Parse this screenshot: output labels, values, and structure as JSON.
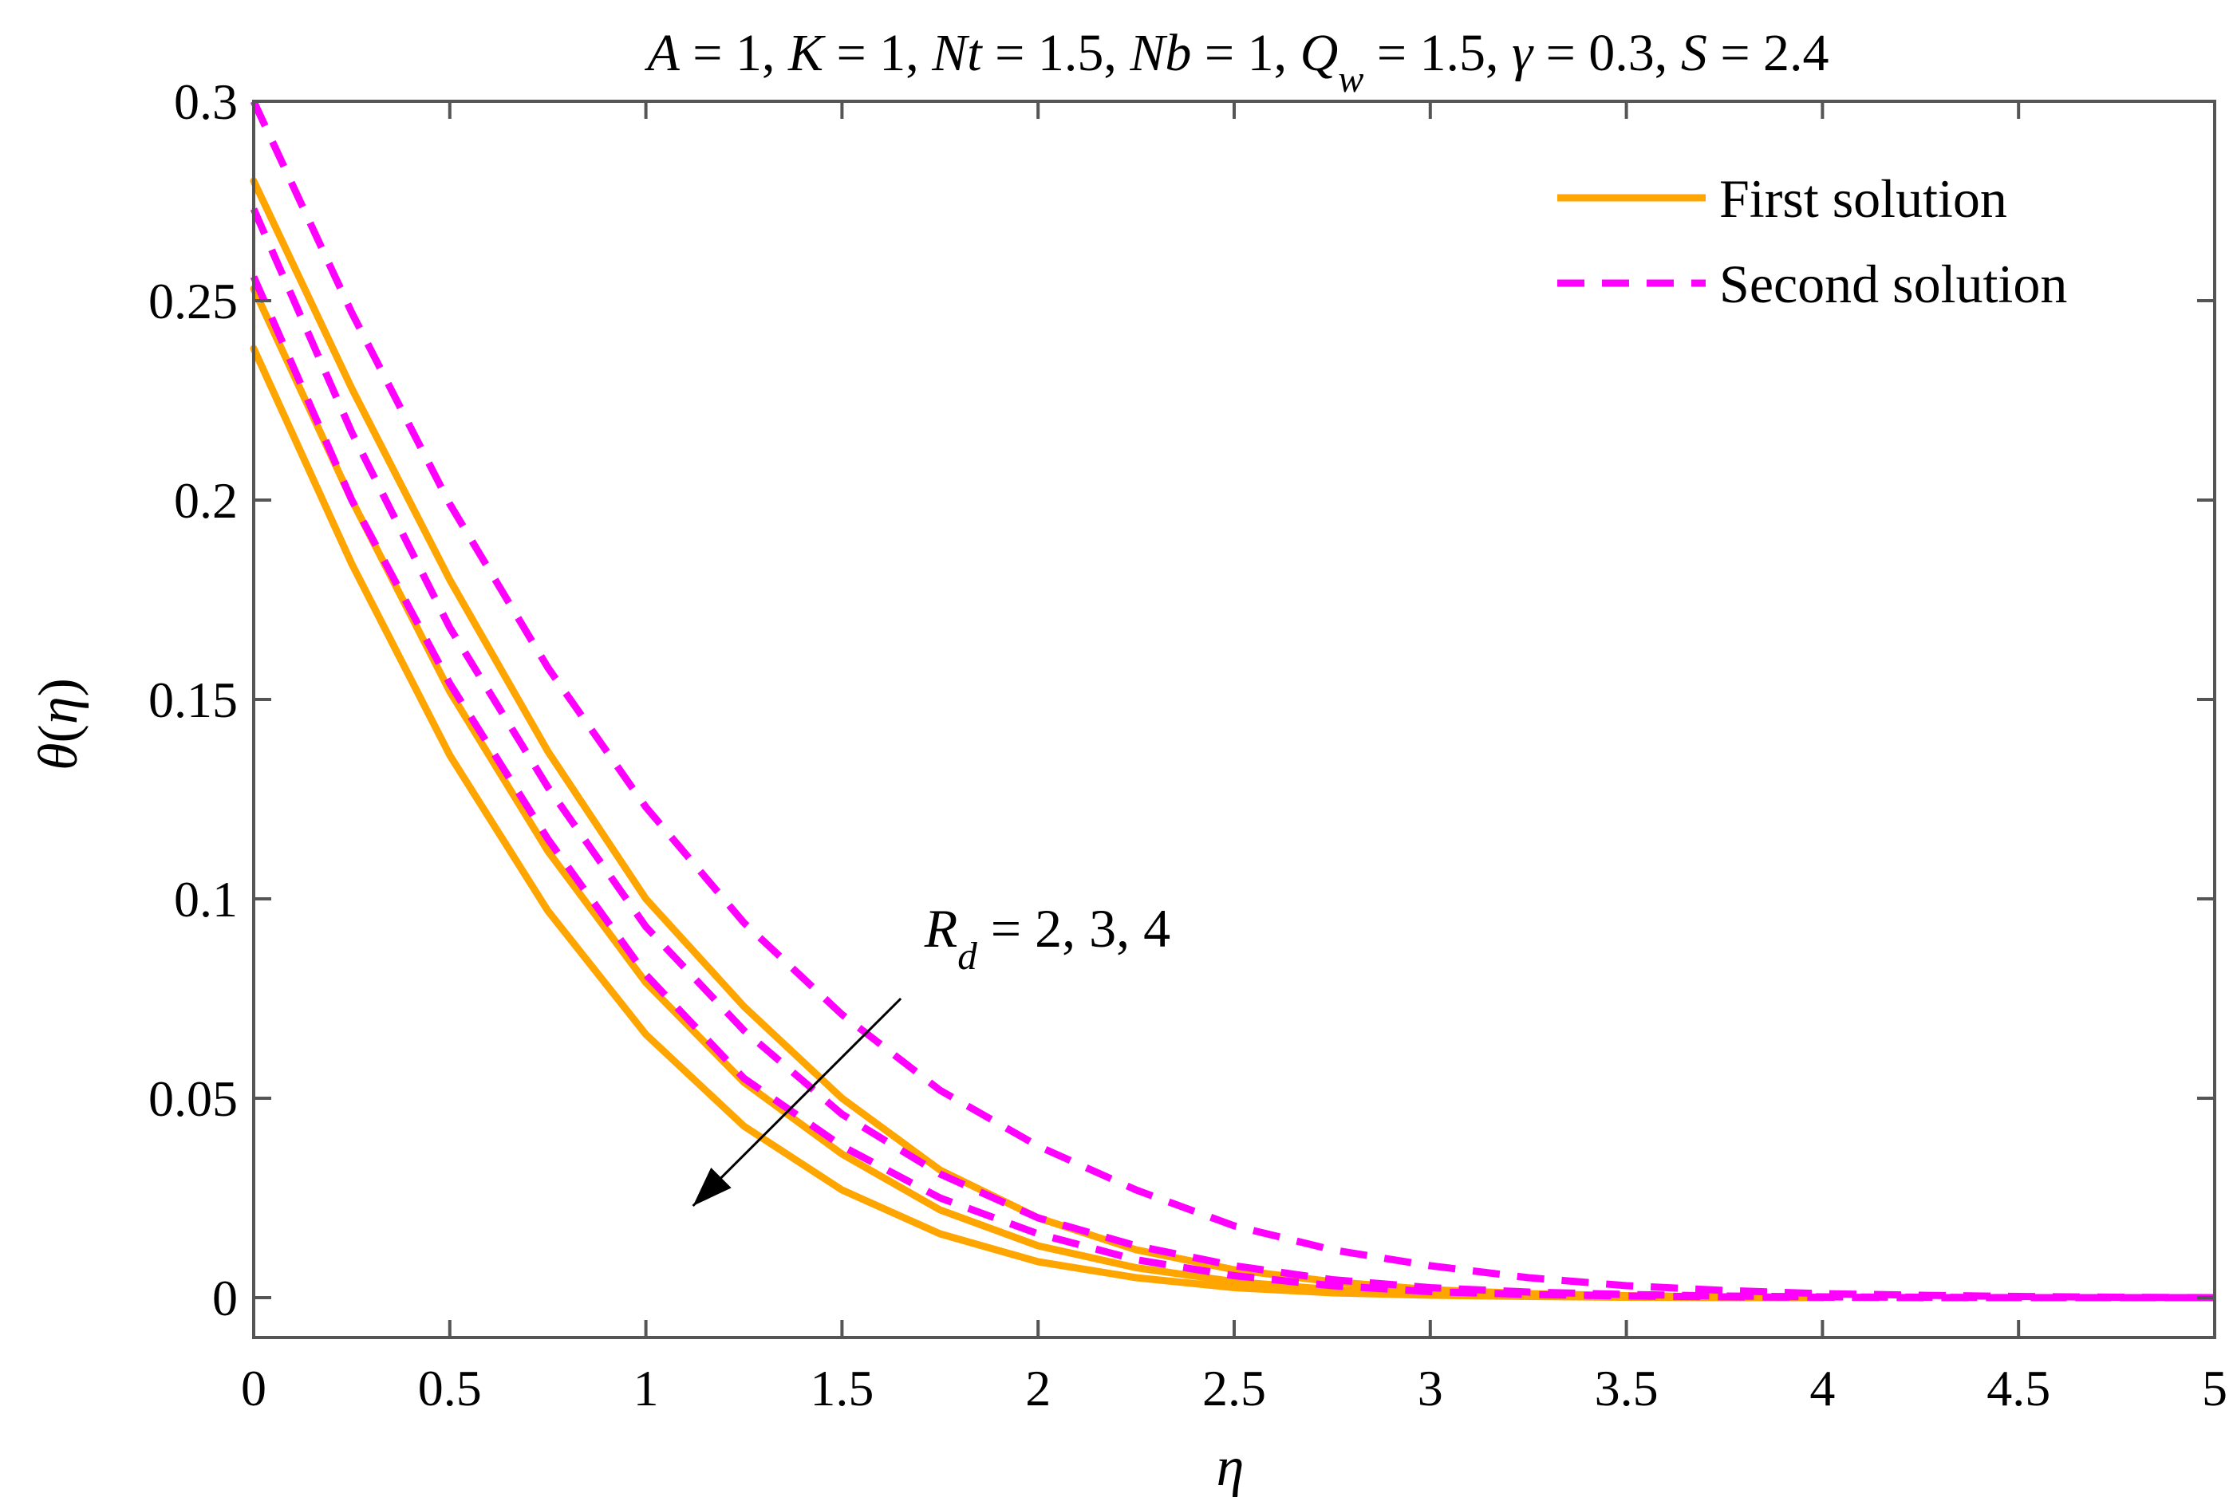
{
  "chart_data": {
    "type": "line",
    "title_parts": [
      {
        "t": "A",
        "it": true
      },
      {
        "t": " = 1, ",
        "it": false
      },
      {
        "t": "K",
        "it": true
      },
      {
        "t": " = 1, ",
        "it": false
      },
      {
        "t": "Nt",
        "it": true
      },
      {
        "t": " = 1.5, ",
        "it": false
      },
      {
        "t": "Nb",
        "it": true
      },
      {
        "t": " = 1, ",
        "it": false
      },
      {
        "t": "Q",
        "it": true
      },
      {
        "t": "w",
        "it": true,
        "sub": true
      },
      {
        "t": " = 1.5, ",
        "it": false
      },
      {
        "t": "γ",
        "it": true
      },
      {
        "t": " = 0.3, ",
        "it": false
      },
      {
        "t": "S",
        "it": true
      },
      {
        "t": " = 2.4",
        "it": false
      }
    ],
    "xlabel": "η",
    "ylabel_parts": [
      {
        "t": "θ",
        "it": true
      },
      {
        "t": "(",
        "it": false
      },
      {
        "t": "η",
        "it": true
      },
      {
        "t": ")",
        "it": false
      }
    ],
    "xlim": [
      0,
      5
    ],
    "ylim": [
      -0.01,
      0.3
    ],
    "xticks": [
      0,
      0.5,
      1,
      1.5,
      2,
      2.5,
      3,
      3.5,
      4,
      4.5,
      5
    ],
    "xtick_labels": [
      "0",
      "0.5",
      "1",
      "1.5",
      "2",
      "2.5",
      "3",
      "3.5",
      "4",
      "4.5",
      "5"
    ],
    "yticks": [
      0,
      0.05,
      0.1,
      0.15,
      0.2,
      0.25,
      0.3
    ],
    "ytick_labels": [
      "0",
      "0.05",
      "0.1",
      "0.15",
      "0.2",
      "0.25",
      "0.3"
    ],
    "grid": false,
    "legend_position": "top-right",
    "legend": [
      {
        "label": "First solution",
        "color": "#FFA500",
        "dash": "solid"
      },
      {
        "label": "Second solution",
        "color": "#FF00FF",
        "dash": "dashed"
      }
    ],
    "annotation": {
      "parts": [
        {
          "t": "R",
          "it": true
        },
        {
          "t": "d",
          "it": true,
          "sub": true
        },
        {
          "t": " = 2, 3, 4",
          "it": false
        }
      ],
      "arrow_from": [
        1.65,
        0.075
      ],
      "arrow_to": [
        1.12,
        0.023
      ],
      "label_at": [
        1.7,
        0.092
      ]
    },
    "series": [
      {
        "group": "First solution",
        "color": "#FFA500",
        "dash": "solid",
        "x": [
          0,
          0.25,
          0.5,
          0.75,
          1,
          1.25,
          1.5,
          1.75,
          2,
          2.25,
          2.5,
          2.75,
          3,
          3.25,
          3.5,
          3.75,
          4
        ],
        "y": [
          0.28,
          0.228,
          0.18,
          0.137,
          0.1,
          0.073,
          0.05,
          0.032,
          0.02,
          0.012,
          0.007,
          0.004,
          0.002,
          0.001,
          0.0005,
          0.0002,
          0
        ]
      },
      {
        "group": "First solution",
        "color": "#FFA500",
        "dash": "solid",
        "x": [
          0,
          0.25,
          0.5,
          0.75,
          1,
          1.25,
          1.5,
          1.75,
          2,
          2.25,
          2.5,
          2.75,
          3,
          3.25,
          3.5,
          3.75,
          4
        ],
        "y": [
          0.253,
          0.2,
          0.152,
          0.112,
          0.079,
          0.054,
          0.036,
          0.022,
          0.013,
          0.0075,
          0.004,
          0.002,
          0.001,
          0.0005,
          0.0002,
          0.0001,
          0
        ]
      },
      {
        "group": "First solution",
        "color": "#FFA500",
        "dash": "solid",
        "x": [
          0,
          0.25,
          0.5,
          0.75,
          1,
          1.25,
          1.5,
          1.75,
          2,
          2.25,
          2.5,
          2.75,
          3,
          3.25,
          3.5,
          3.75,
          4
        ],
        "y": [
          0.238,
          0.184,
          0.136,
          0.097,
          0.066,
          0.043,
          0.027,
          0.016,
          0.009,
          0.005,
          0.0025,
          0.0012,
          0.0006,
          0.0003,
          0.0001,
          0,
          0
        ]
      },
      {
        "group": "Second solution",
        "color": "#FF00FF",
        "dash": "dashed",
        "x": [
          0,
          0.25,
          0.5,
          0.75,
          1,
          1.25,
          1.5,
          1.75,
          2,
          2.25,
          2.5,
          2.75,
          3,
          3.25,
          3.5,
          3.75,
          4,
          4.25,
          4.5,
          4.75,
          5
        ],
        "y": [
          0.3,
          0.247,
          0.199,
          0.158,
          0.123,
          0.094,
          0.071,
          0.052,
          0.038,
          0.027,
          0.018,
          0.012,
          0.008,
          0.005,
          0.003,
          0.0018,
          0.001,
          0.0006,
          0.0003,
          0.0001,
          0
        ]
      },
      {
        "group": "Second solution",
        "color": "#FF00FF",
        "dash": "dashed",
        "x": [
          0,
          0.25,
          0.5,
          0.75,
          1,
          1.25,
          1.5,
          1.75,
          2,
          2.25,
          2.5,
          2.75,
          3,
          3.25,
          3.5,
          3.75,
          4,
          4.25,
          4.5,
          4.75,
          5
        ],
        "y": [
          0.273,
          0.217,
          0.168,
          0.128,
          0.093,
          0.067,
          0.046,
          0.031,
          0.02,
          0.013,
          0.008,
          0.0045,
          0.0025,
          0.0014,
          0.0008,
          0.0004,
          0.0002,
          0.0001,
          0,
          0,
          0
        ]
      },
      {
        "group": "Second solution",
        "color": "#FF00FF",
        "dash": "dashed",
        "x": [
          0,
          0.25,
          0.5,
          0.75,
          1,
          1.25,
          1.5,
          1.75,
          2,
          2.25,
          2.5,
          2.75,
          3,
          3.25,
          3.5,
          3.75,
          4,
          4.25,
          4.5,
          4.75,
          5
        ],
        "y": [
          0.256,
          0.2,
          0.154,
          0.115,
          0.081,
          0.055,
          0.038,
          0.025,
          0.016,
          0.0095,
          0.0055,
          0.003,
          0.0015,
          0.0008,
          0.0004,
          0.0002,
          0.0001,
          0,
          0,
          0,
          0
        ]
      }
    ]
  }
}
